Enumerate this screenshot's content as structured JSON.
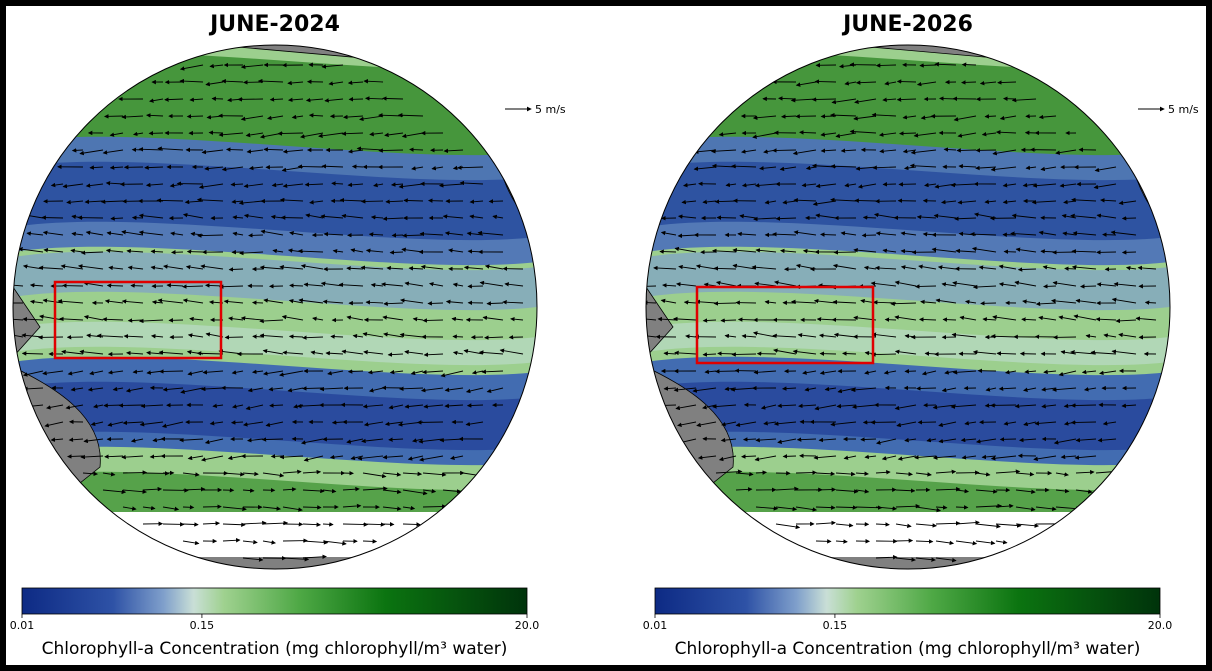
{
  "panels": [
    {
      "title": "JUNE-2024",
      "quiver_key": "5 m/s",
      "colorbar": {
        "label": "Chlorophyll-a Concentration (mg chlorophyll/m³ water)",
        "scale": "log",
        "lim": [
          0.01,
          20
        ],
        "ticks": [
          0.01,
          0.15,
          {
            "value": 20,
            "label": "20.0"
          }
        ]
      }
    },
    {
      "title": "JUNE-2026",
      "quiver_key": "5 m/s",
      "colorbar": {
        "label": "Chlorophyll-a Concentration (mg chlorophyll/m³ water)",
        "scale": "log",
        "lim": [
          0.01,
          20
        ],
        "ticks": [
          0.01,
          0.15,
          {
            "value": 20,
            "label": "20.0"
          }
        ]
      }
    }
  ]
}
